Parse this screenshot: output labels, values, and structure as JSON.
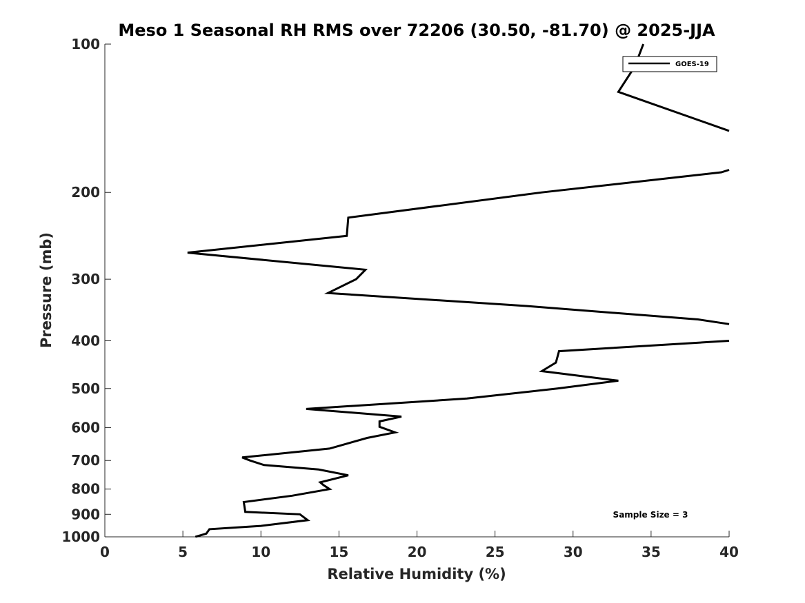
{
  "chart_data": {
    "type": "line",
    "title": "Meso 1 Seasonal RH RMS over 72206 (30.50, -81.70) @ 2025-JJA",
    "xlabel": "Relative Humidity (%)",
    "ylabel": "Pressure (mb)",
    "xlim": [
      0,
      40
    ],
    "ylim": [
      1000,
      100
    ],
    "y_scale": "log",
    "y_direction": "reversed",
    "x_ticks": [
      "0",
      "5",
      "10",
      "15",
      "20",
      "25",
      "30",
      "35",
      "40"
    ],
    "y_ticks": [
      "100",
      "200",
      "300",
      "400",
      "500",
      "600",
      "700",
      "800",
      "900",
      "1000"
    ],
    "grid": false,
    "legend_position": "top-right",
    "annotation": "Sample Size = 3",
    "series": [
      {
        "name": "GOES-19",
        "color": "#000000",
        "points": [
          {
            "rh": 5.8,
            "p": 1000
          },
          {
            "rh": 6.5,
            "p": 985
          },
          {
            "rh": 6.7,
            "p": 965
          },
          {
            "rh": 10.0,
            "p": 950
          },
          {
            "rh": 13.0,
            "p": 925
          },
          {
            "rh": 12.5,
            "p": 900
          },
          {
            "rh": 9.0,
            "p": 890
          },
          {
            "rh": 8.9,
            "p": 850
          },
          {
            "rh": 12.0,
            "p": 825
          },
          {
            "rh": 14.4,
            "p": 800
          },
          {
            "rh": 14.0,
            "p": 785
          },
          {
            "rh": 13.8,
            "p": 775
          },
          {
            "rh": 15.6,
            "p": 750
          },
          {
            "rh": 13.7,
            "p": 730
          },
          {
            "rh": 10.2,
            "p": 715
          },
          {
            "rh": 9.3,
            "p": 700
          },
          {
            "rh": 8.8,
            "p": 690
          },
          {
            "rh": 14.4,
            "p": 662
          },
          {
            "rh": 16.8,
            "p": 630
          },
          {
            "rh": 18.6,
            "p": 614
          },
          {
            "rh": 17.6,
            "p": 598
          },
          {
            "rh": 17.6,
            "p": 583
          },
          {
            "rh": 19.0,
            "p": 570
          },
          {
            "rh": 12.9,
            "p": 550
          },
          {
            "rh": 23.2,
            "p": 524
          },
          {
            "rh": 29.0,
            "p": 500
          },
          {
            "rh": 32.9,
            "p": 482
          },
          {
            "rh": 28.0,
            "p": 461
          },
          {
            "rh": 28.9,
            "p": 443
          },
          {
            "rh": 29.1,
            "p": 420
          },
          {
            "rh": 40.0,
            "p": 400
          },
          {
            "rh": null,
            "p": 385
          },
          {
            "rh": 40.0,
            "p": 370
          },
          {
            "rh": 38.0,
            "p": 362
          },
          {
            "rh": 27.0,
            "p": 340
          },
          {
            "rh": 14.3,
            "p": 320
          },
          {
            "rh": 16.1,
            "p": 300
          },
          {
            "rh": 16.7,
            "p": 287
          },
          {
            "rh": 5.3,
            "p": 265
          },
          {
            "rh": 15.5,
            "p": 245
          },
          {
            "rh": 15.6,
            "p": 225
          },
          {
            "rh": 28.0,
            "p": 200
          },
          {
            "rh": 39.5,
            "p": 182
          },
          {
            "rh": 40.0,
            "p": 180
          },
          {
            "rh": null,
            "p": 160
          },
          {
            "rh": 40.0,
            "p": 150
          },
          {
            "rh": 32.9,
            "p": 125
          },
          {
            "rh": 33.8,
            "p": 113
          },
          {
            "rh": 34.0,
            "p": 110
          },
          {
            "rh": 34.5,
            "p": 100
          }
        ]
      }
    ]
  }
}
